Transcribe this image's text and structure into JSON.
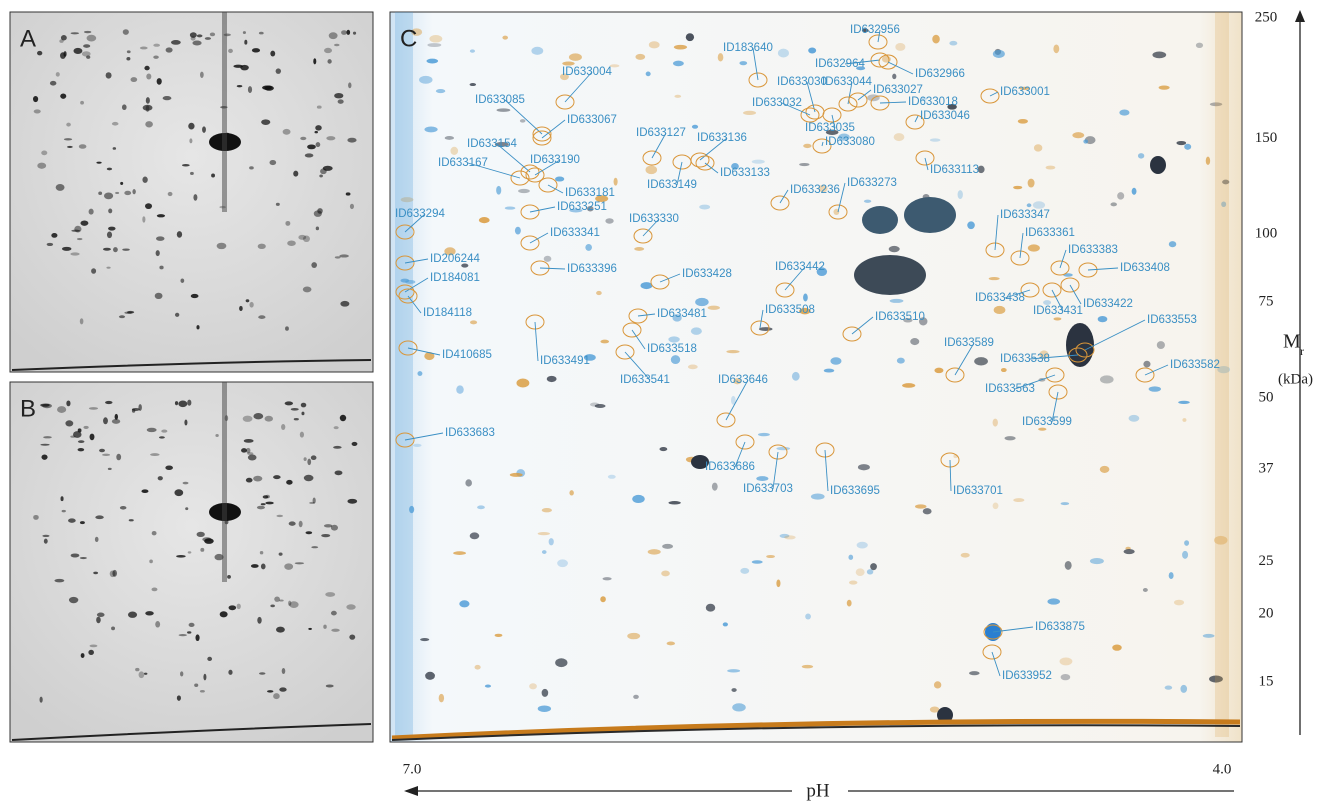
{
  "panels": {
    "a": "A",
    "b": "B",
    "c": "C"
  },
  "spots": [
    "ID632956",
    "ID183640",
    "ID633004",
    "ID632964",
    "ID632966",
    "ID633030",
    "ID633044",
    "ID633027",
    "ID633001",
    "ID633085",
    "ID633032",
    "ID633018",
    "ID633067",
    "ID633035",
    "ID633046",
    "ID633127",
    "ID633136",
    "ID633154",
    "ID633080",
    "ID633190",
    "ID633167",
    "ID633149",
    "ID633133",
    "ID633113",
    "ID633181",
    "ID633273",
    "ID633236",
    "ID633251",
    "ID633294",
    "ID633330",
    "ID633347",
    "ID633341",
    "ID633361",
    "ID206244",
    "ID633383",
    "ID633396",
    "ID633442",
    "ID633428",
    "ID633408",
    "ID184081",
    "ID633438",
    "ID633422",
    "ID633431",
    "ID633508",
    "ID184118",
    "ID633510",
    "ID633481",
    "ID633553",
    "ID633518",
    "ID633491",
    "ID410685",
    "ID633589",
    "ID633538",
    "ID633541",
    "ID633582",
    "ID633563",
    "ID633646",
    "ID633599",
    "ID633683",
    "ID633686",
    "ID633703",
    "ID633695",
    "ID633701",
    "ID633875",
    "ID633952"
  ],
  "mr_axis": {
    "ticks": [
      250,
      150,
      100,
      75,
      50,
      37,
      25,
      20,
      15
    ],
    "label": "M",
    "label_sub": "r",
    "unit": "(kDa)"
  },
  "ph_axis": {
    "left": "7.0",
    "right": "4.0",
    "label": "pH"
  }
}
